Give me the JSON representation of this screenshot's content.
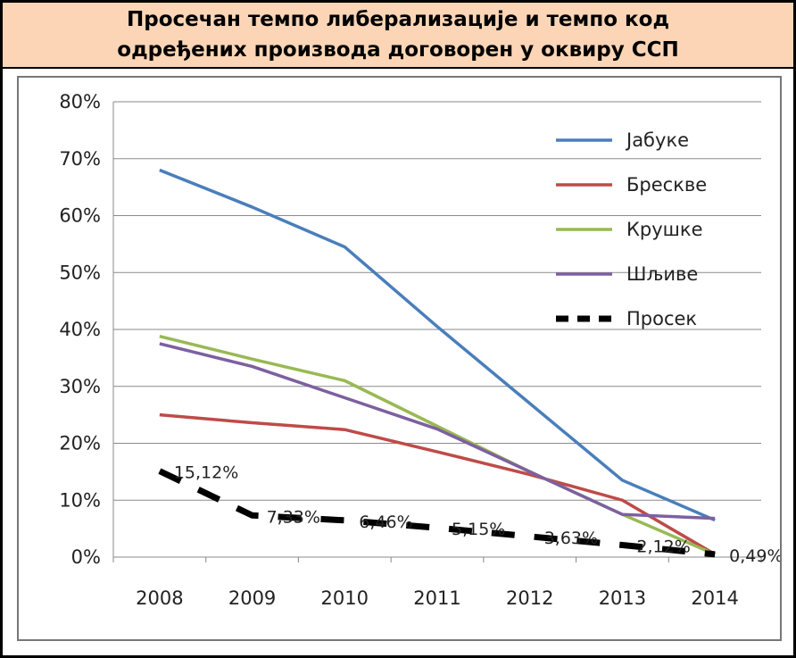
{
  "title": "Просечан темпо либерализације и темпо код одређених производа договорен у оквиру ССП",
  "chart_data": {
    "type": "line",
    "title": "Просечан темпо либерализације и темпо код одређених производа договорен у оквиру ССП",
    "xlabel": "",
    "ylabel": "",
    "categories": [
      "2008",
      "2009",
      "2010",
      "2011",
      "2012",
      "2013",
      "2014"
    ],
    "ylim": [
      0,
      0.8
    ],
    "yticks": [
      "0%",
      "10%",
      "20%",
      "30%",
      "40%",
      "50%",
      "60%",
      "70%",
      "80%"
    ],
    "grid": true,
    "legend_position": "top-right",
    "series": [
      {
        "name": "Јабуке",
        "color": "#4a7ebb",
        "dashed": false,
        "values": [
          0.68,
          0.615,
          0.545,
          0.405,
          0.27,
          0.135,
          0.065
        ]
      },
      {
        "name": "Брескве",
        "color": "#be4b48",
        "dashed": false,
        "values": [
          0.25,
          0.236,
          0.224,
          0.185,
          0.145,
          0.1,
          0.005
        ]
      },
      {
        "name": "Крушке",
        "color": "#98b954",
        "dashed": false,
        "values": [
          0.388,
          0.348,
          0.31,
          0.23,
          0.15,
          0.075,
          0.005
        ]
      },
      {
        "name": "Шљиве",
        "color": "#7d60a0",
        "dashed": false,
        "values": [
          0.375,
          0.335,
          0.28,
          0.225,
          0.15,
          0.075,
          0.068
        ]
      },
      {
        "name": "Просек",
        "color": "#000000",
        "dashed": true,
        "values": [
          0.1512,
          0.0733,
          0.0646,
          0.0515,
          0.0363,
          0.0212,
          0.0049
        ],
        "labels": [
          "15,12%",
          "7,33%",
          "6,46%",
          "5,15%",
          "3,63%",
          "2,12%",
          "0,49%"
        ]
      }
    ]
  }
}
